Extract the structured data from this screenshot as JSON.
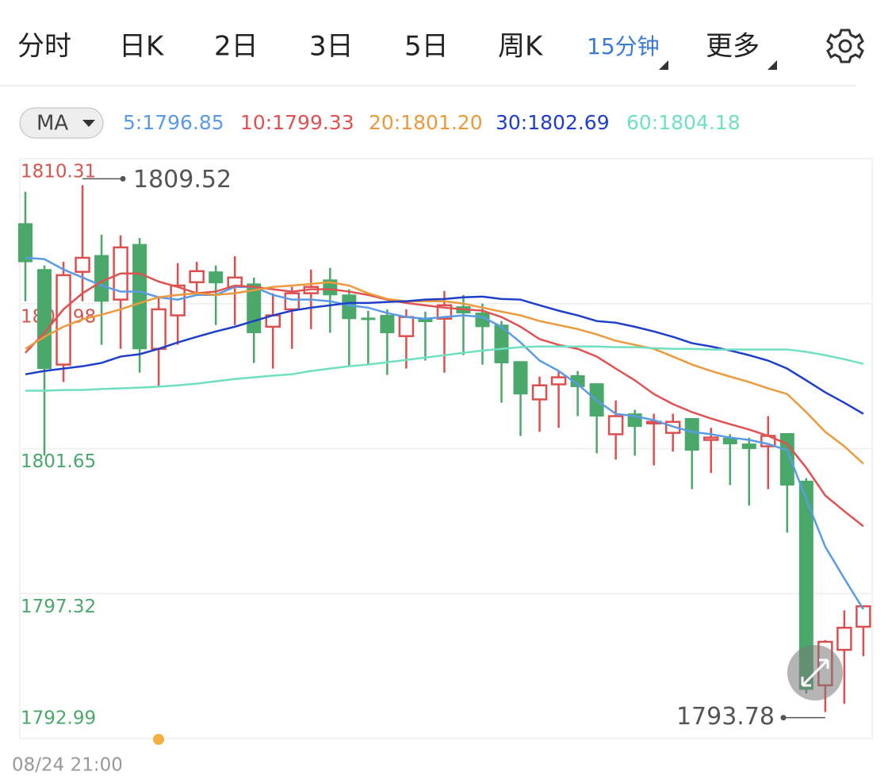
{
  "tabs": [
    "分时",
    "日K",
    "2日",
    "3日",
    "5日",
    "周K",
    "15分钟",
    "更多"
  ],
  "active_tab": 6,
  "active_color": "#3a7bd5",
  "chart_data": {
    "type": "candlestick",
    "indicator": "MA",
    "up_color": "#dc4f4f",
    "down_color": "#4aa86a",
    "ylim": [
      1792.99,
      1810.31
    ],
    "yticks": [
      1810.31,
      1805.98,
      1801.65,
      1797.32,
      1792.99
    ],
    "ytick_colors": [
      "#d9534f",
      "#d9534f",
      "#4aa86a",
      "#4aa86a",
      "#4aa86a"
    ],
    "grid": true,
    "categories": [
      "08/24 21:00",
      null,
      null,
      null,
      null,
      null,
      null,
      null,
      null,
      null,
      null,
      null,
      null,
      null,
      null,
      null,
      null,
      null,
      null,
      null,
      null,
      null,
      null,
      null,
      null,
      null,
      null,
      null,
      null,
      null,
      null,
      null,
      null,
      null,
      null,
      null,
      null,
      null,
      null,
      null,
      null,
      null,
      null,
      null,
      null
    ],
    "open": [
      1808.37,
      1807.0,
      1804.16,
      1806.93,
      1807.42,
      1806.1,
      1807.75,
      1804.63,
      1805.63,
      1806.62,
      1806.93,
      1806.48,
      1806.57,
      1805.29,
      1805.81,
      1806.29,
      1806.69,
      1806.24,
      1805.55,
      1805.63,
      1805.01,
      1805.53,
      1805.53,
      1805.89,
      1805.7,
      1805.34,
      1804.25,
      1803.12,
      1803.57,
      1803.83,
      1803.59,
      1802.08,
      1802.69,
      1802.41,
      1802.12,
      1802.55,
      1801.91,
      1801.96,
      1801.79,
      1801.72,
      1802.1,
      1800.68,
      1794.58,
      1795.64,
      1796.33
    ],
    "high": [
      1809.32,
      1807.12,
      1807.23,
      1809.52,
      1808.04,
      1808.02,
      1807.94,
      1806.17,
      1807.19,
      1807.23,
      1807.12,
      1807.4,
      1806.76,
      1806.29,
      1806.48,
      1807.0,
      1807.05,
      1806.41,
      1805.77,
      1805.81,
      1805.81,
      1805.74,
      1806.36,
      1806.24,
      1805.98,
      1805.46,
      1804.25,
      1803.8,
      1803.97,
      1803.97,
      1803.59,
      1803.09,
      1802.81,
      1802.69,
      1802.69,
      1802.55,
      1802.27,
      1802.08,
      1801.98,
      1802.62,
      1802.1,
      1800.77,
      1795.93,
      1796.82,
      1796.94
    ],
    "low": [
      1806.05,
      1801.44,
      1803.64,
      1806.05,
      1804.75,
      1804.63,
      1803.92,
      1803.5,
      1804.75,
      1806.29,
      1805.34,
      1805.34,
      1804.21,
      1804.04,
      1804.63,
      1805.22,
      1805.11,
      1804.11,
      1804.16,
      1803.85,
      1804.04,
      1804.28,
      1803.92,
      1804.44,
      1804.16,
      1803.02,
      1802.03,
      1802.15,
      1802.27,
      1802.62,
      1801.51,
      1801.32,
      1801.44,
      1801.15,
      1801.56,
      1800.44,
      1800.92,
      1800.56,
      1799.95,
      1800.44,
      1799.14,
      1794.34,
      1793.78,
      1794.03,
      1795.45
    ],
    "close": [
      1807.23,
      1804.04,
      1806.83,
      1807.35,
      1806.05,
      1807.66,
      1804.63,
      1805.81,
      1806.52,
      1806.95,
      1806.6,
      1806.76,
      1805.11,
      1805.63,
      1806.29,
      1806.48,
      1806.24,
      1805.53,
      1805.51,
      1805.11,
      1805.58,
      1805.44,
      1805.93,
      1805.7,
      1805.29,
      1804.21,
      1803.28,
      1803.54,
      1803.78,
      1803.5,
      1802.62,
      1802.62,
      1802.31,
      1802.45,
      1802.45,
      1801.6,
      1801.98,
      1801.79,
      1801.65,
      1802.03,
      1800.56,
      1794.46,
      1795.88,
      1796.3,
      1796.94
    ],
    "ma": [
      {
        "name": "5:1796.85",
        "color": "#5b9be6",
        "values": [
          1807.35,
          1807.31,
          1807.0,
          1806.76,
          1806.52,
          1806.34,
          1806.34,
          1806.17,
          1806.1,
          1806.24,
          1806.24,
          1806.48,
          1806.48,
          1806.24,
          1806.1,
          1806.1,
          1806.05,
          1805.93,
          1805.86,
          1805.7,
          1805.58,
          1805.53,
          1805.58,
          1805.63,
          1805.58,
          1805.29,
          1804.82,
          1804.28,
          1803.97,
          1803.57,
          1803.09,
          1802.69,
          1802.62,
          1802.5,
          1802.31,
          1802.15,
          1802.08,
          1801.98,
          1801.91,
          1801.79,
          1801.6,
          1800.14,
          1798.72,
          1797.77,
          1796.85
        ]
      },
      {
        "name": "10:1799.33",
        "color": "#e05252",
        "values": [
          1804.51,
          1805.11,
          1805.81,
          1806.29,
          1806.64,
          1806.88,
          1806.88,
          1806.64,
          1806.48,
          1806.29,
          1806.34,
          1806.52,
          1806.48,
          1806.41,
          1806.34,
          1806.41,
          1806.41,
          1806.34,
          1806.24,
          1806.1,
          1806.0,
          1805.93,
          1805.86,
          1805.81,
          1805.77,
          1805.58,
          1805.29,
          1804.92,
          1804.75,
          1804.63,
          1804.4,
          1804.04,
          1803.69,
          1803.28,
          1802.98,
          1802.74,
          1802.55,
          1802.38,
          1802.22,
          1802.03,
          1801.79,
          1801.08,
          1800.25,
          1799.78,
          1799.33
        ]
      },
      {
        "name": "20:1801.20",
        "color": "#eb9a3c",
        "values": [
          1804.63,
          1804.99,
          1805.29,
          1805.51,
          1805.65,
          1805.81,
          1806.0,
          1806.17,
          1806.24,
          1806.29,
          1806.24,
          1806.29,
          1806.38,
          1806.48,
          1806.52,
          1806.57,
          1806.62,
          1806.52,
          1806.29,
          1806.12,
          1806.05,
          1806.05,
          1806.05,
          1805.98,
          1805.86,
          1805.74,
          1805.63,
          1805.46,
          1805.34,
          1805.22,
          1805.06,
          1804.87,
          1804.75,
          1804.63,
          1804.4,
          1804.16,
          1803.97,
          1803.8,
          1803.64,
          1803.45,
          1803.28,
          1802.74,
          1802.15,
          1801.72,
          1801.2
        ]
      },
      {
        "name": "30:1802.69",
        "color": "#1f3fc8",
        "values": [
          1803.87,
          1803.97,
          1804.04,
          1804.11,
          1804.21,
          1804.4,
          1804.47,
          1804.63,
          1804.82,
          1804.99,
          1805.15,
          1805.29,
          1805.46,
          1805.63,
          1805.77,
          1805.86,
          1805.93,
          1806.0,
          1806.0,
          1806.03,
          1806.05,
          1806.1,
          1806.12,
          1806.17,
          1806.19,
          1806.12,
          1806.1,
          1805.93,
          1805.77,
          1805.63,
          1805.46,
          1805.41,
          1805.29,
          1805.15,
          1804.99,
          1804.8,
          1804.7,
          1804.58,
          1804.44,
          1804.28,
          1804.04,
          1803.69,
          1803.33,
          1803.02,
          1802.69
        ]
      },
      {
        "name": "60:1804.18",
        "color": "#6fe0c0",
        "values": [
          1803.38,
          1803.38,
          1803.4,
          1803.4,
          1803.43,
          1803.45,
          1803.47,
          1803.5,
          1803.54,
          1803.59,
          1803.66,
          1803.73,
          1803.78,
          1803.83,
          1803.87,
          1803.97,
          1804.04,
          1804.11,
          1804.16,
          1804.23,
          1804.3,
          1804.37,
          1804.44,
          1804.51,
          1804.58,
          1804.63,
          1804.68,
          1804.7,
          1804.7,
          1804.7,
          1804.7,
          1804.68,
          1804.68,
          1804.65,
          1804.63,
          1804.63,
          1804.61,
          1804.61,
          1804.61,
          1804.61,
          1804.61,
          1804.54,
          1804.44,
          1804.32,
          1804.18
        ]
      }
    ],
    "high_label": 1809.52,
    "low_label": 1793.78
  }
}
